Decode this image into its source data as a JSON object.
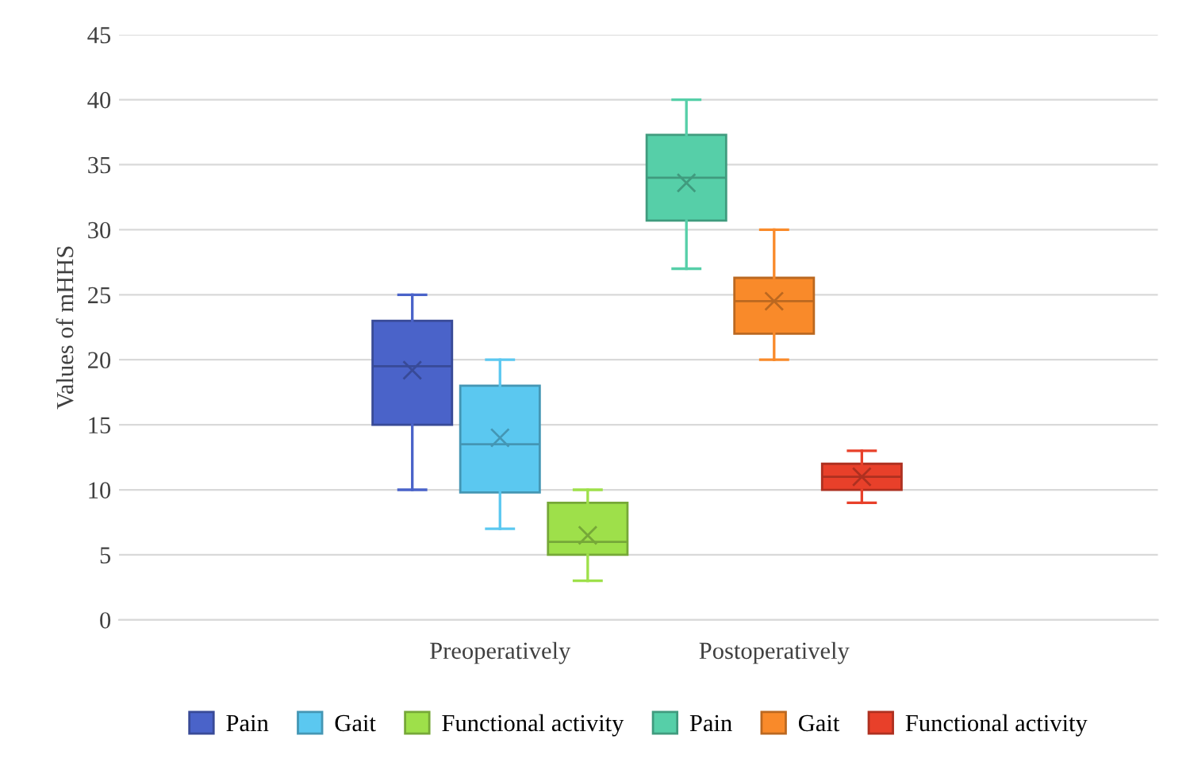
{
  "chart_data": {
    "type": "box",
    "ylabel": "Values of mHHS",
    "categories": [
      "Preoperatively",
      "Postoperatively"
    ],
    "ylim": [
      0,
      45
    ],
    "yticks": [
      0,
      5,
      10,
      15,
      20,
      25,
      30,
      35,
      40,
      45
    ],
    "grid": "y",
    "legend": "bottom",
    "series": [
      {
        "name": "Pain",
        "color": "#4a63c9",
        "boxes": [
          {
            "low": 10,
            "q1": 15,
            "median": 19.5,
            "q3": 23,
            "high": 25,
            "mean": 19.2
          },
          null
        ]
      },
      {
        "name": "Gait",
        "color": "#5bc8f0",
        "boxes": [
          {
            "low": 7,
            "q1": 9.8,
            "median": 13.5,
            "q3": 18,
            "high": 20,
            "mean": 14
          },
          null
        ]
      },
      {
        "name": "Functional activity",
        "color": "#9ee04a",
        "boxes": [
          {
            "low": 3,
            "q1": 5,
            "median": 6,
            "q3": 9,
            "high": 10,
            "mean": 6.5
          },
          null
        ]
      },
      {
        "name": "Pain",
        "color": "#56cfa8",
        "boxes": [
          null,
          {
            "low": 27,
            "q1": 30.7,
            "median": 34,
            "q3": 37.3,
            "high": 40,
            "mean": 33.6
          }
        ]
      },
      {
        "name": "Gait",
        "color": "#f98a2a",
        "boxes": [
          null,
          {
            "low": 20,
            "q1": 22,
            "median": 24.5,
            "q3": 26.3,
            "high": 30,
            "mean": 24.5
          }
        ]
      },
      {
        "name": "Functional activity",
        "color": "#e8402a",
        "boxes": [
          null,
          {
            "low": 9,
            "q1": 10,
            "median": 11,
            "q3": 12,
            "high": 13,
            "mean": 11
          }
        ]
      }
    ]
  }
}
